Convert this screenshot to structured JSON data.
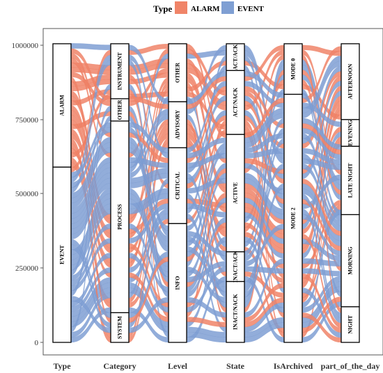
{
  "chart_data": {
    "type": "alluvial",
    "legend": {
      "title": "Type",
      "placement": "top",
      "entries": [
        {
          "name": "ALARM",
          "color": "#f08468"
        },
        {
          "name": "EVENT",
          "color": "#7f9fd3"
        }
      ]
    },
    "y_ticks": [
      "0",
      "250000",
      "500000",
      "750000",
      "1000000"
    ],
    "y_tick_values": [
      0,
      250000,
      500000,
      750000,
      1000000
    ],
    "ylim": [
      0,
      1000000
    ],
    "axes": [
      {
        "name": "Type",
        "strata": [
          {
            "label": "EVENT",
            "from": 0,
            "to": 590000
          },
          {
            "label": "ALARM",
            "from": 590000,
            "to": 1005000
          }
        ]
      },
      {
        "name": "Category",
        "strata": [
          {
            "label": "SYSTEM",
            "from": 0,
            "to": 100000
          },
          {
            "label": "PROCESS",
            "from": 100000,
            "to": 745000
          },
          {
            "label": "OTHER",
            "from": 745000,
            "to": 820000
          },
          {
            "label": "INSTRUMENT",
            "from": 820000,
            "to": 1005000
          }
        ]
      },
      {
        "name": "Level",
        "strata": [
          {
            "label": "INFO",
            "from": 0,
            "to": 400000
          },
          {
            "label": "CRITICAL",
            "from": 400000,
            "to": 655000
          },
          {
            "label": "ADVISORY",
            "from": 655000,
            "to": 810000
          },
          {
            "label": "OTHER",
            "from": 810000,
            "to": 1005000
          }
        ]
      },
      {
        "name": "State",
        "strata": [
          {
            "label": "INACT/NACK",
            "from": 0,
            "to": 205000
          },
          {
            "label": "INACT/ACK",
            "from": 205000,
            "to": 305000
          },
          {
            "label": "ACTIVE",
            "from": 305000,
            "to": 700000
          },
          {
            "label": "ACT/NACK",
            "from": 700000,
            "to": 915000
          },
          {
            "label": "ACT/ACK",
            "from": 915000,
            "to": 1005000
          }
        ]
      },
      {
        "name": "IsArchived",
        "strata": [
          {
            "label": "MODE 2",
            "from": 0,
            "to": 835000
          },
          {
            "label": "MODE 0",
            "from": 835000,
            "to": 1005000
          }
        ]
      },
      {
        "name": "part_of_the_day",
        "strata": [
          {
            "label": "NIGHT",
            "from": 0,
            "to": 120000
          },
          {
            "label": "MORNING",
            "from": 120000,
            "to": 430000
          },
          {
            "label": "LATE NIGHT",
            "from": 430000,
            "to": 660000
          },
          {
            "label": "EVENING",
            "from": 660000,
            "to": 750000
          },
          {
            "label": "AFTERNOON",
            "from": 750000,
            "to": 1005000
          }
        ]
      }
    ]
  }
}
